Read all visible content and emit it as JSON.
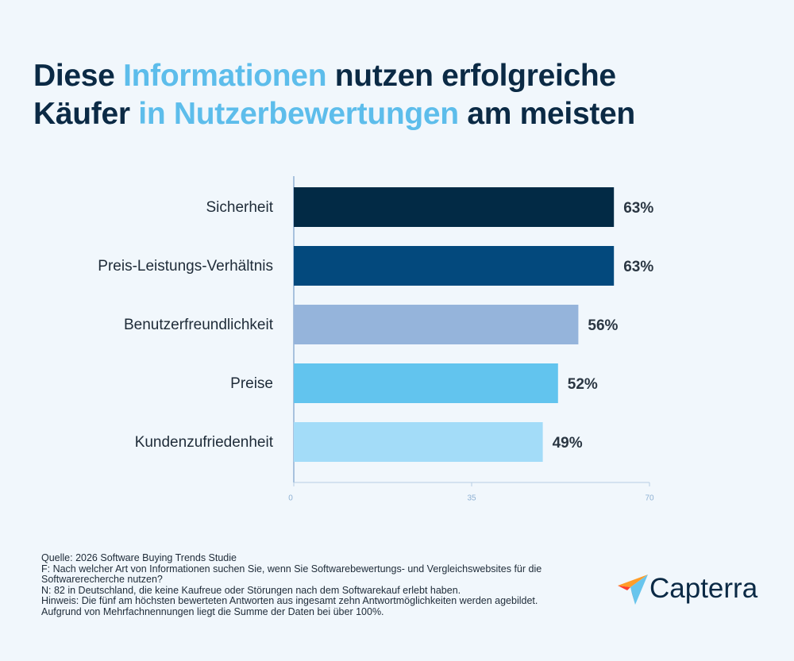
{
  "chart_data": {
    "type": "bar",
    "orientation": "horizontal",
    "title_lines": [
      [
        {
          "text": "Diese",
          "highlight": false
        },
        {
          "text": "Informationen",
          "highlight": true
        },
        {
          "text": "nutzen erfolgreiche",
          "highlight": false
        }
      ],
      [
        {
          "text": "Käufer",
          "highlight": false
        },
        {
          "text": "in Nutzerbewertungen",
          "highlight": true
        },
        {
          "text": "am meisten",
          "highlight": false
        }
      ]
    ],
    "categories": [
      "Sicherheit",
      "Preis-Leistungs-Verhältnis",
      "Benutzerfreundlichkeit",
      "Preise",
      "Kundenzufriedenheit"
    ],
    "values": [
      63,
      63,
      56,
      52,
      49
    ],
    "value_labels": [
      "63%",
      "63%",
      "56%",
      "52%",
      "49%"
    ],
    "colors": [
      "#022a45",
      "#03497d",
      "#95b4db",
      "#62c4ee",
      "#a3dcf8"
    ],
    "xlim": [
      0,
      70
    ],
    "xticks": [
      0,
      35,
      70
    ],
    "footnotes": [
      "Quelle: 2026 Software Buying Trends Studie",
      "F: Nach welcher Art von Informationen suchen Sie, wenn Sie Softwarebewertungs- und Vergleichswebsites für die",
      "Softwarerecherche nutzen?",
      "N: 82 in Deutschland, die keine Kaufreue oder Störungen nach dem Softwarekauf erlebt haben.",
      "Hinweis: Die fünf am höchsten bewerteten Antworten aus ingesamt zehn Antwortmöglichkeiten werden agebildet.",
      "Aufgrund von Mehrfachnennungen liegt die Summe der Daten bei über 100%."
    ],
    "brand": "Capterra"
  }
}
